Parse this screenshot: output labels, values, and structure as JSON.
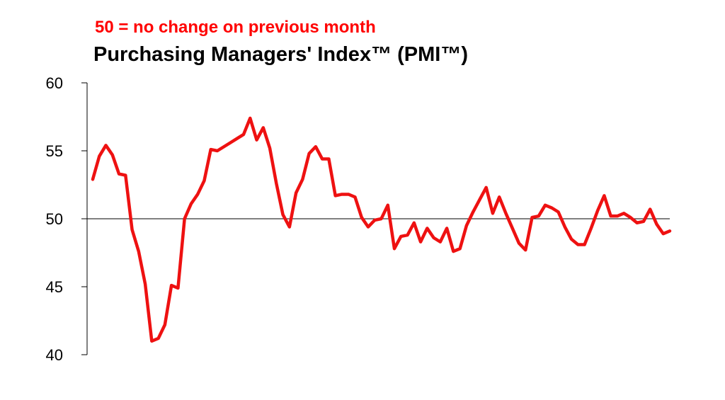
{
  "annotation": "50 =  no change on previous month",
  "title": "Purchasing Managers' Index™ (PMI™)",
  "colors": {
    "series": "#ee1111",
    "axis": "#000000",
    "note": "#ff0000"
  },
  "chart_data": {
    "type": "line",
    "title": "Purchasing Managers' Index™ (PMI™)",
    "annotation": "50 =  no change on previous month",
    "ylim": [
      40,
      60
    ],
    "yticks": [
      40,
      45,
      50,
      55,
      60
    ],
    "reference_line": 50,
    "grid": false,
    "series": [
      {
        "values": [
          52.9,
          54.6,
          55.4,
          54.7,
          53.3,
          53.2,
          49.2,
          47.6,
          45.2,
          41.0,
          41.2,
          42.2,
          45.1,
          44.9,
          50.0,
          51.1,
          51.8,
          52.8,
          55.1,
          55.0,
          55.3,
          55.6,
          55.9,
          56.2,
          57.4,
          55.8,
          56.7,
          55.2,
          52.6,
          50.3,
          49.4,
          51.9,
          52.9,
          54.8,
          55.3,
          54.4,
          54.4,
          51.7,
          51.8,
          51.8,
          51.6,
          50.1,
          49.4,
          49.9,
          50.0,
          51.0,
          47.8,
          48.7,
          48.8,
          49.7,
          48.3,
          49.3,
          48.6,
          48.3,
          49.3,
          47.6,
          47.8,
          49.5,
          50.5,
          51.4,
          52.3,
          50.4,
          51.6,
          50.4,
          49.3,
          48.2,
          47.7,
          50.1,
          50.2,
          51.0,
          50.8,
          50.5,
          49.4,
          48.5,
          48.1,
          48.1,
          49.3,
          50.6,
          51.7,
          50.2,
          50.2,
          50.4,
          50.1,
          49.7,
          49.8,
          50.7,
          49.6,
          48.9,
          49.1
        ]
      }
    ]
  }
}
